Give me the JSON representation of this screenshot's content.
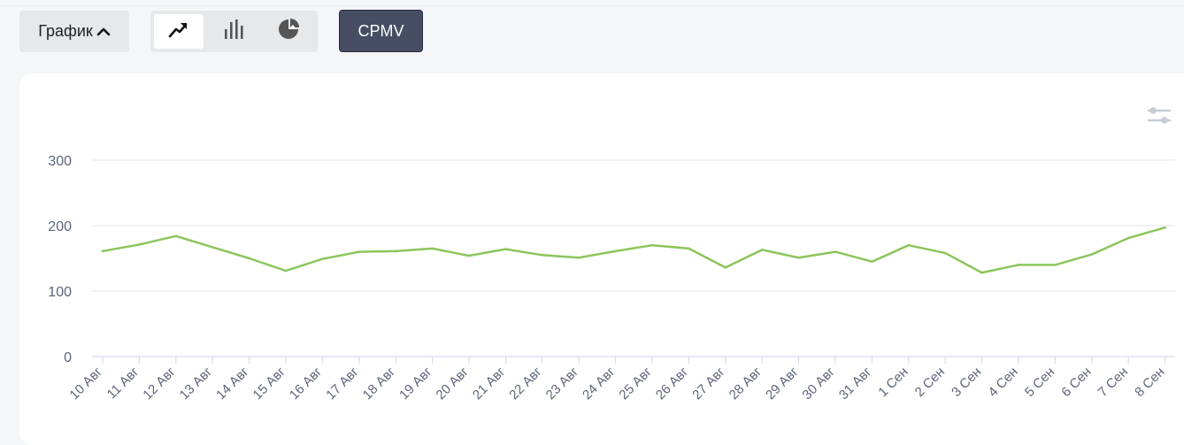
{
  "toolbar": {
    "graph_label": "График",
    "graph_icon": "chevron-up-icon",
    "chart_types": [
      {
        "name": "line",
        "icon": "trend-line-icon",
        "active": true
      },
      {
        "name": "bar",
        "icon": "bar-chart-icon",
        "active": false
      },
      {
        "name": "pie",
        "icon": "pie-chart-icon",
        "active": false
      }
    ],
    "metric_label": "CPMV"
  },
  "settings_icon": "sliders-icon",
  "colors": {
    "line": "#8cc55c",
    "metric_button": "#474e63",
    "grid": "#e3e5e9",
    "axis_text": "#5b6478"
  },
  "chart_data": {
    "type": "line",
    "title": "",
    "xlabel": "",
    "ylabel": "",
    "ylim": [
      0,
      300
    ],
    "yticks": [
      0,
      100,
      200,
      300
    ],
    "grid": true,
    "categories": [
      "10 Авг",
      "11 Авг",
      "12 Авг",
      "13 Авг",
      "14 Авг",
      "15 Авг",
      "16 Авг",
      "17 Авг",
      "18 Авг",
      "19 Авг",
      "20 Авг",
      "21 Авг",
      "22 Авг",
      "23 Авг",
      "24 Авг",
      "25 Авг",
      "26 Авг",
      "27 Авг",
      "28 Авг",
      "29 Авг",
      "30 Авг",
      "31 Авг",
      "1 Сен",
      "2 Сен",
      "3 Сен",
      "4 Сен",
      "5 Сен",
      "6 Сен",
      "7 Сен",
      "8 Сен"
    ],
    "series": [
      {
        "values": [
          161,
          171,
          184,
          167,
          150,
          131,
          149,
          160,
          161,
          165,
          154,
          164,
          155,
          151,
          161,
          170,
          165,
          136,
          163,
          151,
          160,
          145,
          170,
          158,
          128,
          140,
          140,
          156,
          181,
          197
        ]
      }
    ]
  }
}
